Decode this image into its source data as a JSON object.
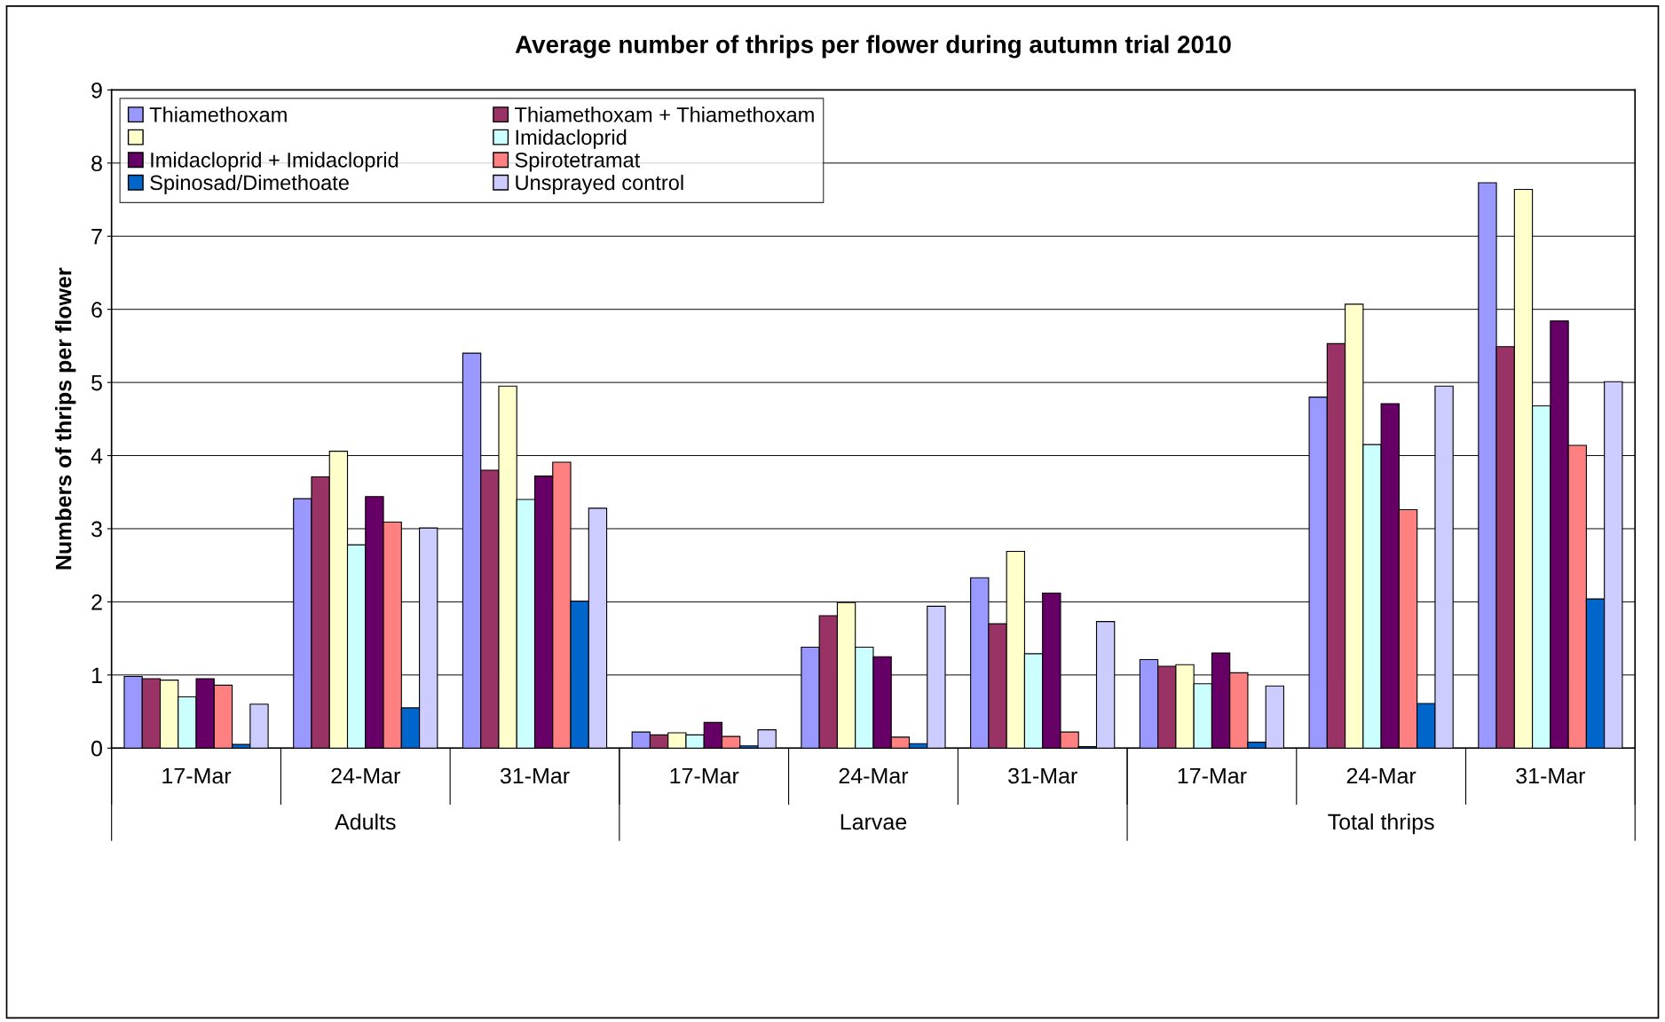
{
  "chart_data": {
    "type": "bar",
    "title": "Average number of thrips per flower during autumn trial 2010",
    "ylabel": "Numbers of thrips per flower",
    "categories": [
      "17-Mar",
      "24-Mar",
      "31-Mar",
      "17-Mar",
      "24-Mar",
      "31-Mar",
      "17-Mar",
      "24-Mar",
      "31-Mar"
    ],
    "annotations": [
      "Adults",
      "Larvae",
      "Total thrips"
    ],
    "series": [
      {
        "name": "Thiamethoxam",
        "color": "#9999ff",
        "values": [
          0.98,
          3.41,
          5.4,
          0.22,
          1.38,
          2.33,
          1.21,
          4.8,
          7.73
        ]
      },
      {
        "name": "Thiamethoxam + Thiamethoxam",
        "color": "#993366",
        "values": [
          0.95,
          3.71,
          3.8,
          0.18,
          1.81,
          1.7,
          1.12,
          5.53,
          5.49
        ]
      },
      {
        "color": "#ffffcc",
        "values": [
          0.93,
          4.06,
          4.95,
          0.21,
          1.99,
          2.69,
          1.14,
          6.07,
          7.64
        ]
      },
      {
        "name": "Imidacloprid",
        "color": "#ccffff",
        "values": [
          0.7,
          2.78,
          3.4,
          0.18,
          1.38,
          1.29,
          0.88,
          4.15,
          4.68
        ]
      },
      {
        "name": "Imidacloprid + Imidacloprid",
        "color": "#660066",
        "values": [
          0.95,
          3.44,
          3.72,
          0.35,
          1.25,
          2.12,
          1.3,
          4.71,
          5.84
        ]
      },
      {
        "name": "Spirotetramat",
        "color": "#ff8080",
        "values": [
          0.86,
          3.09,
          3.91,
          0.16,
          0.15,
          0.22,
          1.03,
          3.26,
          4.14
        ]
      },
      {
        "name": "Spinosad/Dimethoate",
        "color": "#0066cc",
        "values": [
          0.05,
          0.55,
          2.01,
          0.03,
          0.06,
          0.02,
          0.08,
          0.61,
          2.04
        ]
      },
      {
        "name": "Unsprayed control",
        "color": "#ccccff",
        "values": [
          0.6,
          3.01,
          3.28,
          0.25,
          1.94,
          1.73,
          0.85,
          4.95,
          5.01
        ]
      }
    ],
    "ylim": [
      0,
      9
    ],
    "yticks": [
      0,
      1,
      2,
      3,
      4,
      5,
      6,
      7,
      8,
      9
    ],
    "grid": "y",
    "legend": "top left"
  }
}
